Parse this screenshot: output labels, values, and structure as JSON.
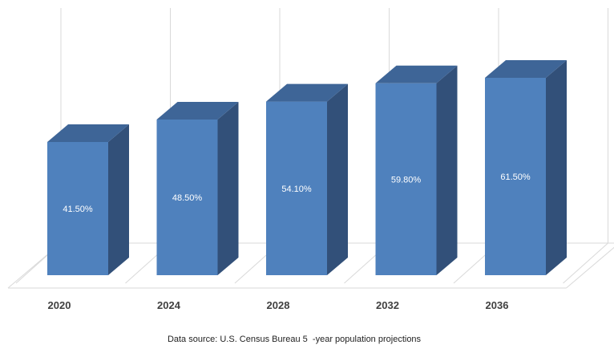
{
  "source_note": "Data source: U.S. Census Bureau 5  -year population projections",
  "colors": {
    "bar_front": "#4f81bd",
    "bar_side": "#325079",
    "bar_top": "#3e6597",
    "gridline": "#d9d9d9"
  },
  "chart_data": {
    "type": "bar",
    "categories": [
      "2020",
      "2024",
      "2028",
      "2032",
      "2036"
    ],
    "values": [
      41.5,
      48.5,
      54.1,
      59.8,
      61.5
    ],
    "data_labels": [
      "41.50%",
      "48.50%",
      "54.10%",
      "59.80%",
      "61.50%"
    ],
    "xlabel": "",
    "ylabel": "",
    "ylim": [
      0,
      65
    ],
    "grid": true,
    "three_d": true
  }
}
